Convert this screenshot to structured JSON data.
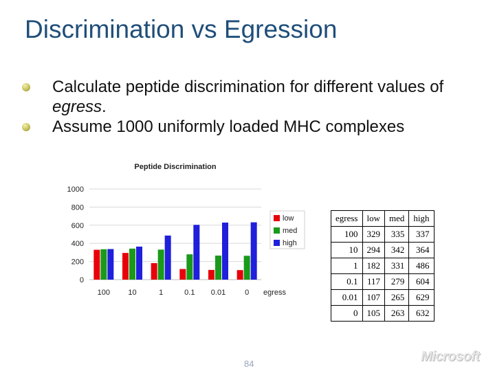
{
  "slide": {
    "title": "Discrimination vs Egression",
    "bullets": [
      {
        "pre": "Calculate peptide discrimination for different values of ",
        "em": "egress",
        "post": "."
      },
      {
        "pre": "Assume 1000 uniformly loaded MHC complexes",
        "em": "",
        "post": ""
      }
    ],
    "page_number": "84",
    "logo_text": "Microsoft"
  },
  "table": {
    "headers": [
      "egress",
      "low",
      "med",
      "high"
    ],
    "rows": [
      [
        "100",
        "329",
        "335",
        "337"
      ],
      [
        "10",
        "294",
        "342",
        "364"
      ],
      [
        "1",
        "182",
        "331",
        "486"
      ],
      [
        "0.1",
        "117",
        "279",
        "604"
      ],
      [
        "0.01",
        "107",
        "265",
        "629"
      ],
      [
        "0",
        "105",
        "263",
        "632"
      ]
    ]
  },
  "chart_data": {
    "type": "bar",
    "title": "Peptide Discrimination",
    "xlabel": "egress",
    "ylabel": "",
    "categories": [
      "100",
      "10",
      "1",
      "0.1",
      "0.01",
      "0"
    ],
    "series": [
      {
        "name": "low",
        "color": "#e8000b",
        "values": [
          329,
          294,
          182,
          117,
          107,
          105
        ]
      },
      {
        "name": "med",
        "color": "#1a9a1a",
        "values": [
          335,
          342,
          331,
          279,
          265,
          263
        ]
      },
      {
        "name": "high",
        "color": "#1f1fdc",
        "values": [
          337,
          364,
          486,
          604,
          629,
          632
        ]
      }
    ],
    "ylim": [
      0,
      1000
    ],
    "yticks": [
      "0",
      "200",
      "400",
      "600",
      "800",
      "1000"
    ],
    "grid": true,
    "legend_position": "right"
  }
}
